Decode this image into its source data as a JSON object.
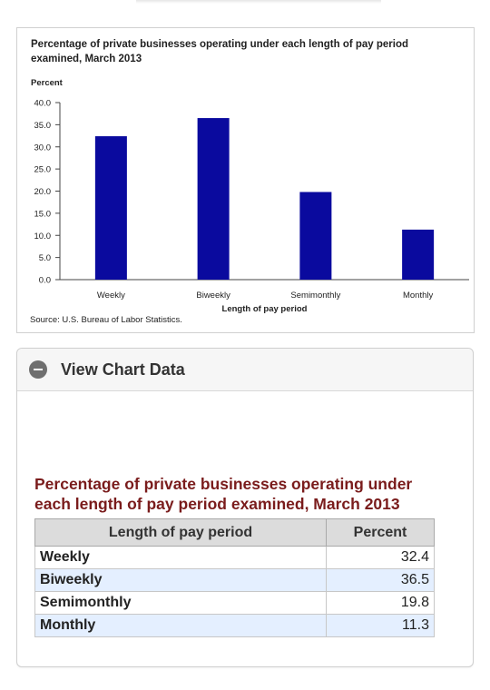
{
  "chart_data": {
    "type": "bar",
    "title": "Percentage of private businesses operating under each length of pay period examined, March 2013",
    "ylabel": "Percent",
    "xlabel": "Length of pay period",
    "categories": [
      "Weekly",
      "Biweekly",
      "Semimonthly",
      "Monthly"
    ],
    "values": [
      32.4,
      36.5,
      19.8,
      11.3
    ],
    "ylim": [
      0,
      40
    ],
    "yticks": [
      "0.0",
      "5.0",
      "10.0",
      "15.0",
      "20.0",
      "25.0",
      "30.0",
      "35.0",
      "40.0"
    ],
    "grid": false,
    "legend": "none",
    "bar_color": "#0a0a9e",
    "source": "Source: U.S. Bureau of Labor Statistics."
  },
  "data_panel": {
    "toggle_label": "View Chart Data",
    "toggle_icon": "minus-circle-icon",
    "table_title": "Percentage of private businesses operating under each length of pay period examined, March 2013",
    "columns": [
      "Length of pay period",
      "Percent"
    ],
    "rows": [
      {
        "category": "Weekly",
        "value": "32.4"
      },
      {
        "category": "Biweekly",
        "value": "36.5"
      },
      {
        "category": "Semimonthly",
        "value": "19.8"
      },
      {
        "category": "Monthly",
        "value": "11.3"
      }
    ]
  }
}
